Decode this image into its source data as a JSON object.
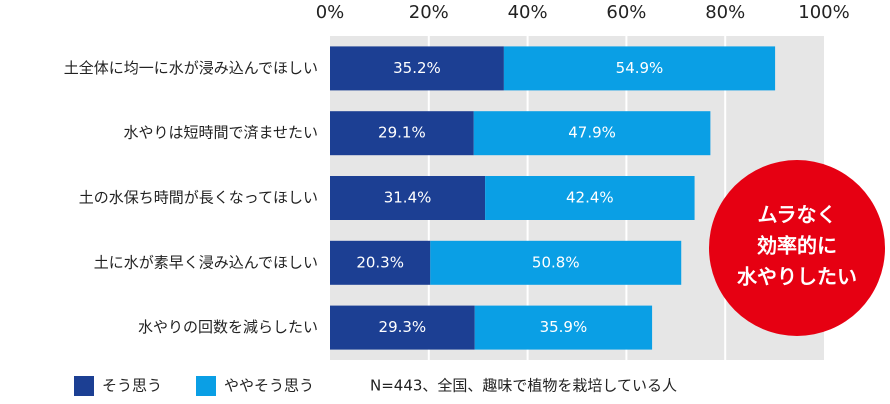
{
  "chart_data": {
    "type": "stacked-bar-horizontal",
    "categories": [
      "土全体に均一に水が浸み込んでほしい",
      "水やりは短時間で済ませたい",
      "土の水保ち時間が長くなってほしい",
      "土に水が素早く浸み込んでほしい",
      "水やりの回数を減らしたい"
    ],
    "series": [
      {
        "name": "そう思う",
        "color": "#1c3f93",
        "values": [
          35.2,
          29.1,
          31.4,
          20.3,
          29.3
        ],
        "value_labels": [
          "35.2%",
          "29.1%",
          "31.4%",
          "20.3%",
          "29.3%"
        ]
      },
      {
        "name": "ややそう思う",
        "color": "#0a9fe5",
        "values": [
          54.9,
          47.9,
          42.4,
          50.8,
          35.9
        ],
        "value_labels": [
          "54.9%",
          "47.9%",
          "42.4%",
          "50.8%",
          "35.9%"
        ]
      }
    ],
    "xlim": [
      0,
      100
    ],
    "xticks": [
      {
        "value": 0,
        "label": "0%"
      },
      {
        "value": 20,
        "label": "20%"
      },
      {
        "value": 40,
        "label": "40%"
      },
      {
        "value": 60,
        "label": "60%"
      },
      {
        "value": 80,
        "label": "80%"
      },
      {
        "value": 100,
        "label": "100%"
      }
    ],
    "grid": true,
    "note": "N=443、全国、趣味で植物を栽培している人",
    "annotation": [
      "ムラなく",
      "効率的に",
      "水やりしたい"
    ],
    "annotation_color": "#e60012"
  }
}
